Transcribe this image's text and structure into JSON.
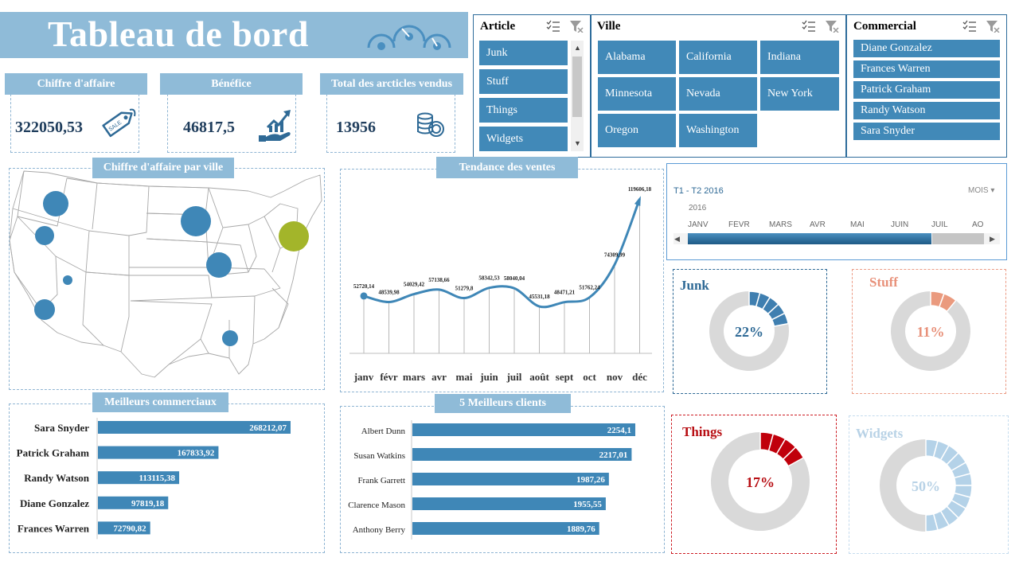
{
  "title": "Tableau de bord",
  "kpis": [
    {
      "label": "Chiffre d'affaire",
      "value": "322050,53",
      "icon": "sale-tag-icon"
    },
    {
      "label": "Bénéfice",
      "value": "46817,5",
      "icon": "profit-growth-icon"
    },
    {
      "label": "Total des arcticles vendus",
      "value": "13956",
      "icon": "coins-icon"
    }
  ],
  "slicers": {
    "article": {
      "title": "Article",
      "items": [
        "Junk",
        "Stuff",
        "Things",
        "Widgets"
      ]
    },
    "ville": {
      "title": "Ville",
      "items": [
        "Alabama",
        "California",
        "Indiana",
        "Minnesota",
        "Nevada",
        "New York",
        "Oregon",
        "Washington"
      ]
    },
    "commercial": {
      "title": "Commercial",
      "items": [
        "Diane Gonzalez",
        "Frances Warren",
        "Patrick Graham",
        "Randy Watson",
        "Sara Snyder"
      ]
    }
  },
  "timeline": {
    "range_label": "T1 - T2 2016",
    "level": "MOIS",
    "year": "2016",
    "months": [
      "JANV",
      "FÉVR",
      "MARS",
      "AVR",
      "MAI",
      "JUIN",
      "JUIL",
      "AO"
    ]
  },
  "map": {
    "title": "Chiffre d'affaire par ville",
    "highlight_color": "#a3b52a",
    "bubble_color": "#3f87b7"
  },
  "chart_data": [
    {
      "type": "line",
      "title": "Tendance des ventes",
      "x": [
        "janv",
        "févr",
        "mars",
        "avr",
        "mai",
        "juin",
        "juil",
        "août",
        "sept",
        "oct",
        "nov",
        "déc"
      ],
      "y": [
        52720.14,
        48539.98,
        54029.42,
        57138.66,
        51279.8,
        58342.53,
        58040.04,
        45531.18,
        48471.21,
        51762.24,
        74309.99,
        119606.18
      ],
      "labels": [
        "52720,14",
        "48539,98",
        "54029,42",
        "57138,66",
        "51279,8",
        "58342,53",
        "58040,04",
        "45531,18",
        "48471,21",
        "51762,24",
        "74309,99",
        "119606,18"
      ],
      "color": "#3f87b7"
    },
    {
      "type": "bar",
      "title": "Meilleurs commerciaux",
      "categories": [
        "Sara Snyder",
        "Patrick Graham",
        "Randy Watson",
        "Diane Gonzalez",
        "Frances Warren"
      ],
      "values": [
        268212.07,
        167833.92,
        113115.38,
        97819.18,
        72790.82
      ],
      "labels": [
        "268212,07",
        "167833,92",
        "113115,38",
        "97819,18",
        "72790,82"
      ],
      "color": "#3f87b7"
    },
    {
      "type": "bar",
      "title": "5 Meilleurs clients",
      "categories": [
        "Albert Dunn",
        "Susan Watkins",
        "Frank Garrett",
        "Clarence Mason",
        "Anthony Berry"
      ],
      "values": [
        2254.1,
        2217.01,
        1987.26,
        1955.55,
        1889.76
      ],
      "labels": [
        "2254,1",
        "2217,01",
        "1987,26",
        "1955,55",
        "1889,76"
      ],
      "color": "#3f87b7"
    },
    {
      "type": "pie",
      "donuts": [
        {
          "name": "Junk",
          "value": 22,
          "label": "22%",
          "color": "#3f7fb0",
          "title_color": "#2f6a96",
          "border": "#2f6a96"
        },
        {
          "name": "Stuff",
          "value": 11,
          "label": "11%",
          "color": "#ea9a7e",
          "title_color": "#e8917a",
          "border": "#ec9c86"
        },
        {
          "name": "Things",
          "value": 17,
          "label": "17%",
          "color": "#c0000b",
          "title_color": "#b80f14",
          "border": "#cc1b22"
        },
        {
          "name": "Widgets",
          "value": 50,
          "label": "50%",
          "color": "#b4d2e8",
          "title_color": "#b8d2e6",
          "border": "#c5dcee"
        }
      ]
    }
  ]
}
